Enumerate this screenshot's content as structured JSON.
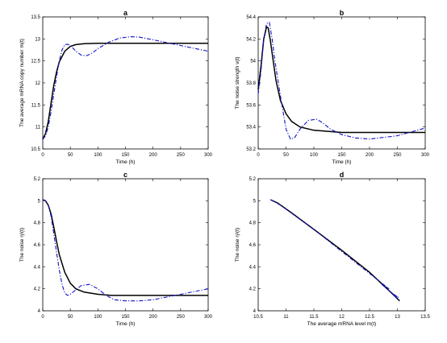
{
  "chart_data": [
    {
      "type": "line",
      "panel": "a",
      "title": "a",
      "xlabel": "Time (h)",
      "ylabel": "The average mRNA copy number m(t)",
      "xlim": [
        0,
        300
      ],
      "ylim": [
        10.5,
        13.5
      ],
      "xticks": [
        0,
        50,
        100,
        150,
        200,
        250,
        300
      ],
      "yticks": [
        10.5,
        11,
        11.5,
        12,
        12.5,
        13,
        13.5
      ],
      "ytick_labels": [
        "10.5",
        "11",
        "11.5",
        "12",
        "12.5",
        "13",
        "13.5"
      ],
      "series": [
        {
          "style": "solid",
          "color": "#000000",
          "x": [
            0,
            5,
            10,
            15,
            20,
            25,
            30,
            40,
            50,
            60,
            75,
            100,
            150,
            200,
            300
          ],
          "y": [
            10.72,
            10.85,
            11.12,
            11.55,
            11.95,
            12.25,
            12.48,
            12.72,
            12.83,
            12.87,
            12.89,
            12.9,
            12.9,
            12.9,
            12.9
          ]
        },
        {
          "style": "dashdot",
          "color": "#1010c8",
          "x": [
            0,
            5,
            10,
            15,
            20,
            25,
            30,
            35,
            40,
            45,
            50,
            60,
            70,
            80,
            90,
            100,
            120,
            140,
            160,
            175,
            200,
            250,
            300
          ],
          "y": [
            10.72,
            10.8,
            11.0,
            11.35,
            11.75,
            12.15,
            12.5,
            12.75,
            12.87,
            12.88,
            12.85,
            12.72,
            12.63,
            12.62,
            12.68,
            12.78,
            12.93,
            13.02,
            13.05,
            13.04,
            12.98,
            12.85,
            12.72
          ]
        }
      ]
    },
    {
      "type": "line",
      "panel": "b",
      "title": "b",
      "xlabel": "Time (h)",
      "ylabel": "The noise strength v(t)",
      "xlim": [
        0,
        300
      ],
      "ylim": [
        53.2,
        54.4
      ],
      "xticks": [
        0,
        50,
        100,
        150,
        200,
        250,
        300
      ],
      "yticks": [
        53.2,
        53.4,
        53.6,
        53.8,
        54,
        54.2,
        54.4
      ],
      "ytick_labels": [
        "53.2",
        "53.4",
        "53.6",
        "53.8",
        "54",
        "54.2",
        "54.4"
      ],
      "series": [
        {
          "style": "solid",
          "color": "#000000",
          "x": [
            0,
            5,
            10,
            15,
            18,
            22,
            27,
            32,
            40,
            50,
            60,
            75,
            100,
            125,
            150,
            200,
            300
          ],
          "y": [
            53.74,
            53.95,
            54.2,
            54.31,
            54.3,
            54.18,
            54.0,
            53.82,
            53.64,
            53.52,
            53.45,
            53.4,
            53.37,
            53.36,
            53.35,
            53.35,
            53.35
          ]
        },
        {
          "style": "dashdot",
          "color": "#1010c8",
          "x": [
            0,
            5,
            10,
            15,
            20,
            25,
            30,
            40,
            50,
            58,
            65,
            75,
            90,
            105,
            115,
            130,
            150,
            175,
            200,
            250,
            300
          ],
          "y": [
            53.7,
            53.9,
            54.2,
            54.34,
            54.35,
            54.2,
            54.0,
            53.68,
            53.38,
            53.29,
            53.3,
            53.38,
            53.46,
            53.47,
            53.44,
            53.38,
            53.33,
            53.3,
            53.29,
            53.32,
            53.39
          ]
        }
      ]
    },
    {
      "type": "line",
      "panel": "c",
      "title": "c",
      "xlabel": "Time (h)",
      "ylabel": "The noise η²(t)",
      "xlim": [
        0,
        300
      ],
      "ylim": [
        4,
        5.2
      ],
      "xticks": [
        0,
        50,
        100,
        150,
        200,
        250,
        300
      ],
      "yticks": [
        4,
        4.2,
        4.4,
        4.6,
        4.8,
        5,
        5.2
      ],
      "ytick_labels": [
        "4",
        "4.2",
        "4.4",
        "4.6",
        "4.8",
        "5",
        "5.2"
      ],
      "series": [
        {
          "style": "solid",
          "color": "#000000",
          "x": [
            0,
            5,
            10,
            15,
            20,
            25,
            30,
            40,
            50,
            60,
            75,
            100,
            125,
            150,
            200,
            300
          ],
          "y": [
            5.01,
            5.0,
            4.96,
            4.88,
            4.76,
            4.63,
            4.51,
            4.35,
            4.25,
            4.2,
            4.17,
            4.15,
            4.14,
            4.14,
            4.14,
            4.14
          ]
        },
        {
          "style": "dashdot",
          "color": "#1010c8",
          "x": [
            0,
            5,
            10,
            15,
            20,
            25,
            30,
            35,
            40,
            45,
            50,
            60,
            70,
            85,
            100,
            115,
            130,
            150,
            175,
            200,
            250,
            300
          ],
          "y": [
            5.01,
            5.0,
            4.96,
            4.86,
            4.7,
            4.53,
            4.37,
            4.24,
            4.16,
            4.14,
            4.15,
            4.19,
            4.23,
            4.24,
            4.2,
            4.14,
            4.1,
            4.09,
            4.09,
            4.1,
            4.15,
            4.2
          ]
        }
      ]
    },
    {
      "type": "line",
      "panel": "d",
      "title": "d",
      "xlabel": "The average mRNA level m(t)",
      "ylabel": "The noise η²(t)",
      "xlim": [
        10.5,
        13.5
      ],
      "ylim": [
        4,
        5.2
      ],
      "xticks": [
        10.5,
        11,
        11.5,
        12,
        12.5,
        13,
        13.5
      ],
      "xtick_labels": [
        "10.5",
        "11",
        "11.5",
        "12",
        "12.5",
        "13",
        "13.5"
      ],
      "yticks": [
        4,
        4.2,
        4.4,
        4.6,
        4.8,
        5,
        5.2
      ],
      "ytick_labels": [
        "4",
        "4.2",
        "4.4",
        "4.6",
        "4.8",
        "5",
        "5.2"
      ],
      "series": [
        {
          "style": "solid",
          "color": "#000000",
          "x": [
            10.72,
            10.85,
            11.1,
            11.5,
            12.0,
            12.5,
            12.88,
            13.04
          ],
          "y": [
            5.01,
            4.98,
            4.89,
            4.74,
            4.55,
            4.35,
            4.17,
            4.09
          ]
        },
        {
          "style": "dashdot",
          "color": "#1010c8",
          "x": [
            10.72,
            10.9,
            11.2,
            11.55,
            11.95,
            12.4,
            12.7,
            12.85,
            12.72,
            12.88,
            13.02,
            12.9,
            13.04
          ],
          "y": [
            5.01,
            4.96,
            4.85,
            4.72,
            4.56,
            4.38,
            4.26,
            4.2,
            4.24,
            4.17,
            4.12,
            4.16,
            4.09
          ]
        }
      ]
    }
  ]
}
